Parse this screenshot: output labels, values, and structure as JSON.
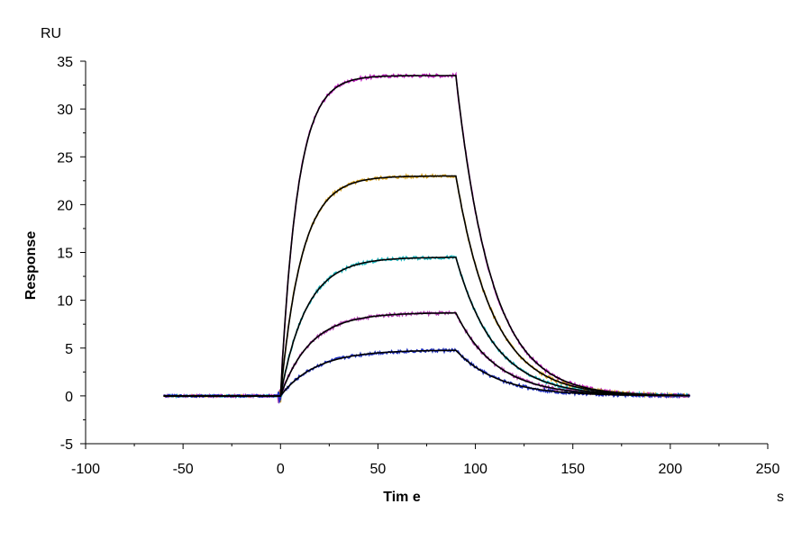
{
  "chart_data": {
    "type": "line",
    "title": "",
    "xlabel": "Tim e",
    "ylabel": "Response",
    "x_unit": "s",
    "y_unit": "RU",
    "xlim": [
      -100,
      250
    ],
    "ylim": [
      -5,
      35
    ],
    "x_ticks": [
      -100,
      -50,
      0,
      50,
      100,
      150,
      200,
      250
    ],
    "y_ticks": [
      -5,
      0,
      5,
      10,
      15,
      20,
      25,
      30,
      35
    ],
    "grid": false,
    "legend": "none",
    "injection": {
      "start": 0,
      "end": 90,
      "baseline_start": -60,
      "end_time": 210
    },
    "fit_color": "#000000",
    "series": [
      {
        "plateau": 33.5,
        "ka_rate": 0.115,
        "kd_rate": 0.055,
        "color": "#c020c0"
      },
      {
        "plateau": 23.0,
        "ka_rate": 0.092,
        "kd_rate": 0.052,
        "color": "#d4a020"
      },
      {
        "plateau": 14.5,
        "ka_rate": 0.075,
        "kd_rate": 0.05,
        "color": "#20b8c0"
      },
      {
        "plateau": 8.7,
        "ka_rate": 0.065,
        "kd_rate": 0.048,
        "color": "#b040b0"
      },
      {
        "plateau": 4.8,
        "ka_rate": 0.055,
        "kd_rate": 0.046,
        "color": "#2030c0"
      }
    ]
  }
}
